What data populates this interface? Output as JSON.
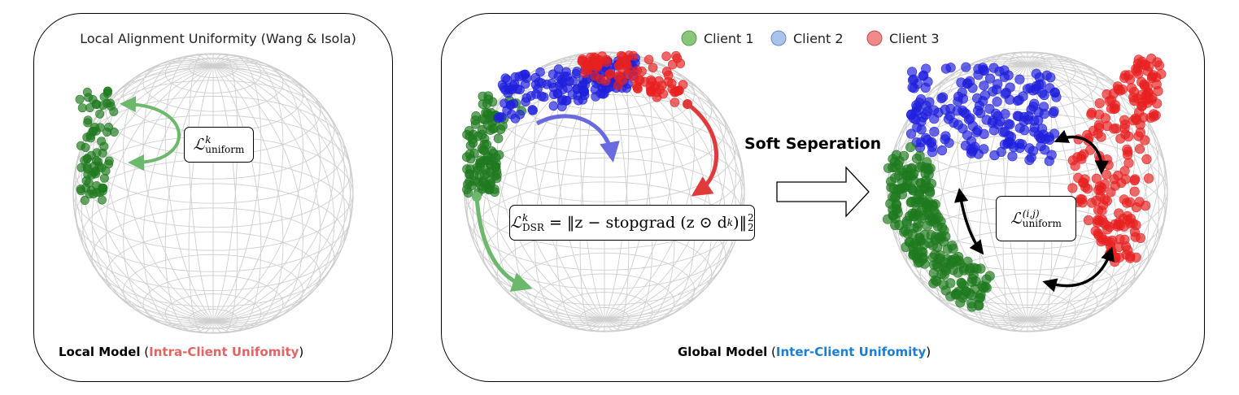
{
  "left_panel": {
    "title": "Local Alignment Uniformity (Wang & Isola)",
    "caption_bold": "Local Model",
    "caption_accent": "Intra-Client Unifomity",
    "formula": {
      "symbol": "ℒ",
      "sup": "k",
      "sub": "uniform"
    }
  },
  "right_panel": {
    "legend": [
      {
        "label": "Client 1",
        "color": "#86c779"
      },
      {
        "label": "Client 2",
        "color": "#a9c4ec"
      },
      {
        "label": "Client 3",
        "color": "#f08a8a"
      }
    ],
    "transition_label": "Soft Seperation",
    "caption_bold": "Global Model",
    "caption_accent": "Inter-Client Unifomity",
    "dsr_formula": {
      "symbol": "ℒ",
      "sup": "k",
      "sub": "DSR",
      "rhs": " = ‖z − stopgrad (z ⊙ d",
      "rhs_sub": "k",
      "rhs_end": ")‖",
      "norm_sub": "2",
      "norm_sup": "2"
    },
    "pair_formula": {
      "symbol": "ℒ",
      "sup": "(i,j)",
      "sub": "uniform"
    }
  },
  "colors": {
    "client1": "#1f7a1f",
    "client2": "#1f1fdd",
    "client3": "#e82020",
    "arrow_green": "#6cb86c",
    "arrow_blue": "#6a6ae0",
    "arrow_red": "#e03a3a",
    "caption_red": "#e06666",
    "caption_blue": "#1a7fd4"
  }
}
